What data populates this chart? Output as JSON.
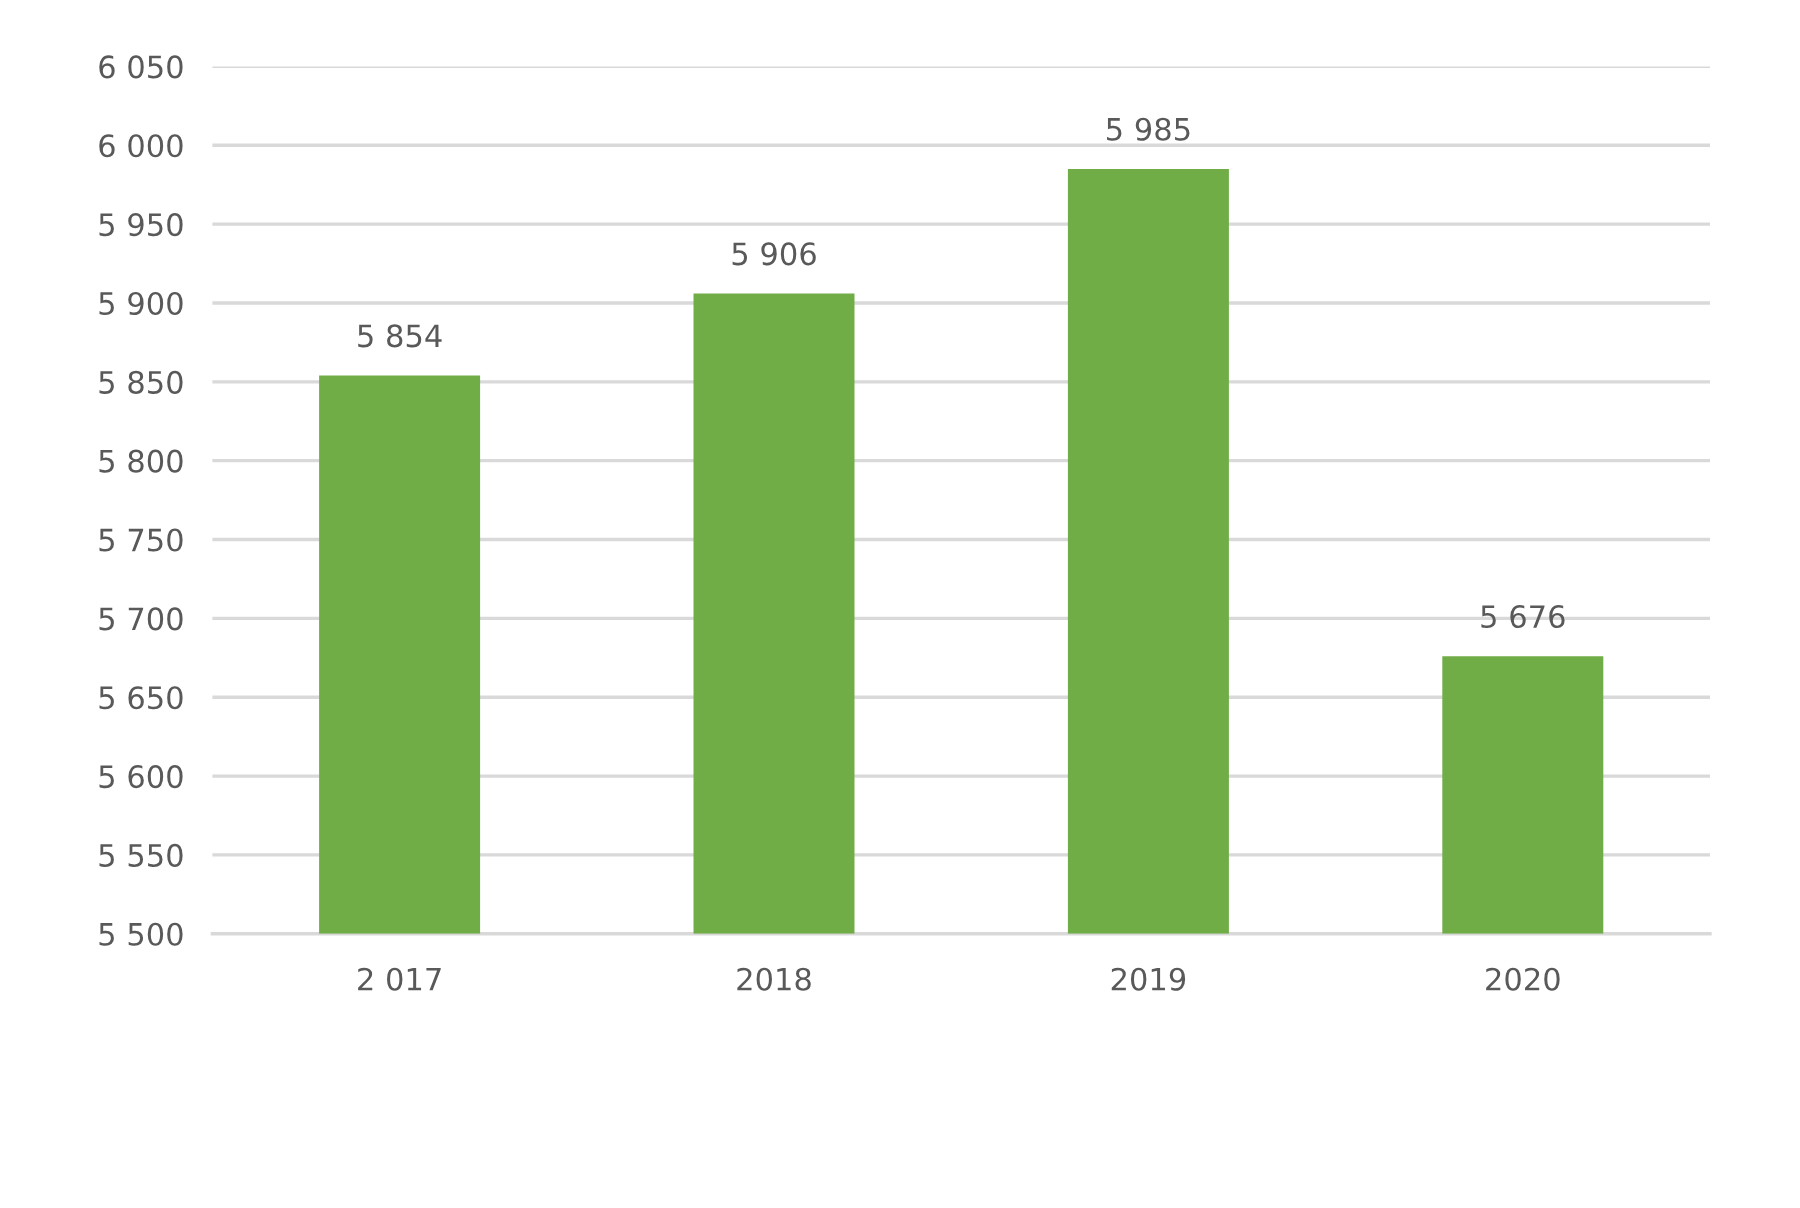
{
  "chart_data": {
    "type": "bar",
    "categories": [
      "2 017",
      "2018",
      "2019",
      "2020"
    ],
    "values": [
      5854,
      5906,
      5985,
      5676
    ],
    "value_labels": [
      "5 854",
      "5 906",
      "5 985",
      "5 676"
    ],
    "color": "#70ad47",
    "ylim": [
      5500,
      6050
    ],
    "yticks": [
      {
        "value": 5500,
        "label": "5 500"
      },
      {
        "value": 5550,
        "label": "5 550"
      },
      {
        "value": 5600,
        "label": "5 600"
      },
      {
        "value": 5650,
        "label": "5 650"
      },
      {
        "value": 5700,
        "label": "5 700"
      },
      {
        "value": 5750,
        "label": "5 750"
      },
      {
        "value": 5800,
        "label": "5 800"
      },
      {
        "value": 5850,
        "label": "5 850"
      },
      {
        "value": 5900,
        "label": "5 900"
      },
      {
        "value": 5950,
        "label": "5 950"
      },
      {
        "value": 6000,
        "label": "6 000"
      },
      {
        "value": 6050,
        "label": "6 050"
      }
    ],
    "grid": "y",
    "legend": false
  }
}
